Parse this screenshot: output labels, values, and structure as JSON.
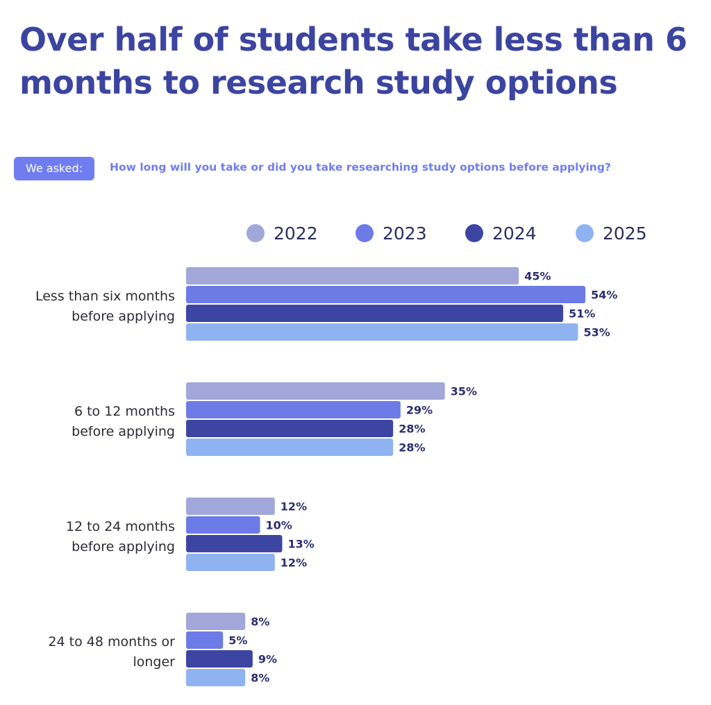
{
  "header": {
    "title": "Over half of students take less than 6 months to research study options",
    "asked_badge": "We asked:",
    "question": "How long will you take or did you take researching study options before applying?"
  },
  "chart_data": {
    "type": "bar",
    "orientation": "horizontal",
    "title": "Over half of students take less than 6 months to research study options",
    "xlabel": "",
    "ylabel": "",
    "xlim": [
      0,
      60
    ],
    "grid": false,
    "legend_position": "top",
    "categories": [
      [
        "Less than six months",
        "before applying"
      ],
      [
        "6 to 12 months",
        "before applying"
      ],
      [
        "12 to 24 months",
        "before applying"
      ],
      [
        "24 to 48 months or",
        "longer"
      ]
    ],
    "series": [
      {
        "name": "2022",
        "color": "#a2a7d9",
        "values": [
          45,
          35,
          12,
          8
        ]
      },
      {
        "name": "2023",
        "color": "#6c7be6",
        "values": [
          54,
          29,
          10,
          5
        ]
      },
      {
        "name": "2024",
        "color": "#3d45a3",
        "values": [
          51,
          28,
          13,
          9
        ]
      },
      {
        "name": "2025",
        "color": "#8fb3f0",
        "values": [
          53,
          28,
          12,
          8
        ]
      }
    ],
    "value_suffix": "%"
  }
}
